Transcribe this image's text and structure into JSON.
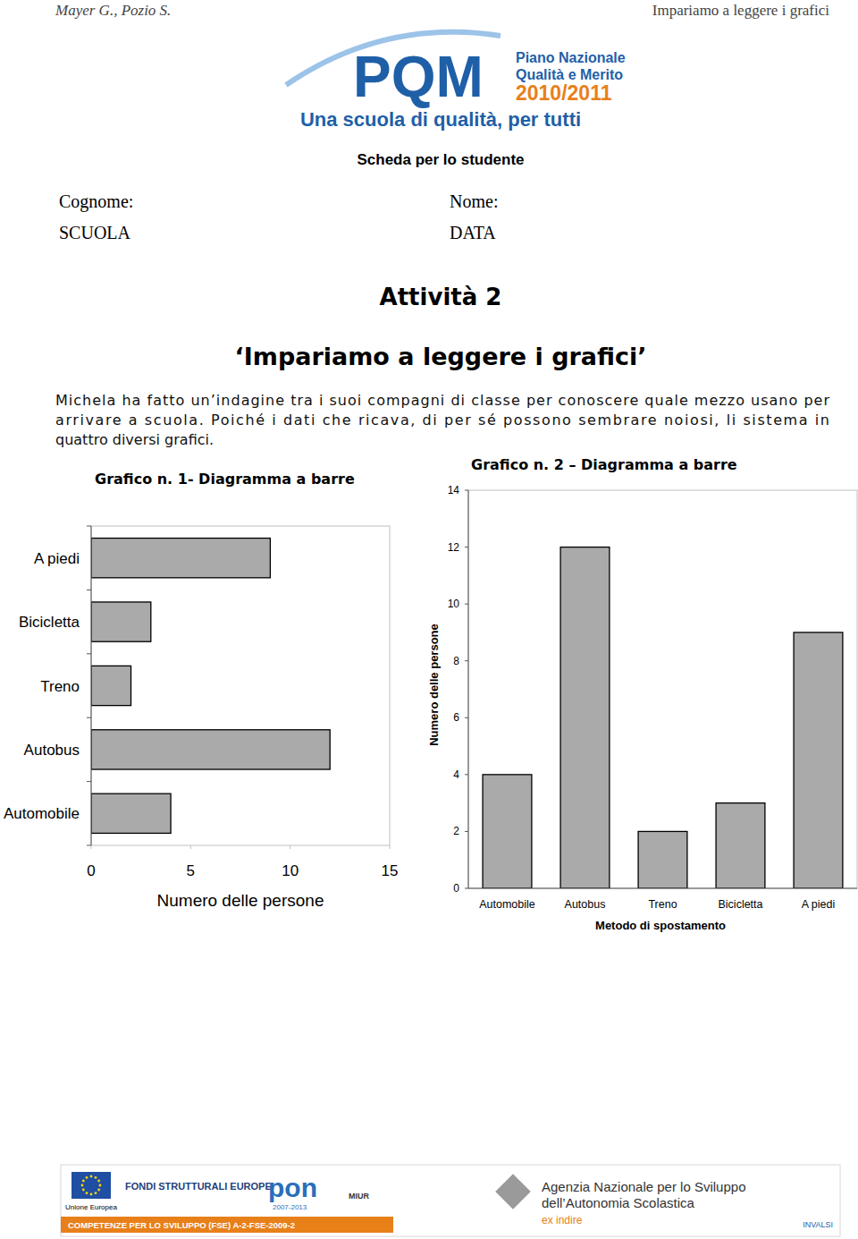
{
  "header": {
    "author": "Mayer G., Pozio S.",
    "running_title": "Impariamo a leggere i grafici"
  },
  "logo": {
    "brand": "PQM",
    "line1": "Piano Nazionale",
    "line2": "Qualità e Merito",
    "years": "2010/2011",
    "motto": "Una scuola di qualità, per tutti"
  },
  "form": {
    "heading": "Scheda per lo studente",
    "surname": "Cognome:",
    "name": "Nome:",
    "school": "SCUOLA",
    "date": "DATA"
  },
  "activity": {
    "number": "Attività 2",
    "title": "‘Impariamo a leggere i grafici’",
    "intro": [
      "Michela ha fatto un’indagine tra i suoi compagni di classe per conoscere quale mezzo usano per",
      "arrivare a scuola. Poiché i dati che ricava, di per sé possono sembrare noiosi, li sistema in",
      "quattro diversi grafici."
    ]
  },
  "chart_data": [
    {
      "type": "bar",
      "orientation": "horizontal",
      "title": "Grafico n. 1- Diagramma a barre",
      "categories": [
        "A piedi",
        "Bicicletta",
        "Treno",
        "Autobus",
        "Automobile"
      ],
      "values": [
        9,
        3,
        2,
        12,
        4
      ],
      "color": "#aaaaaa",
      "xlabel": "Numero delle persone",
      "xlim": [
        0,
        15
      ],
      "xticks": [
        0,
        5,
        10,
        15
      ]
    },
    {
      "type": "bar",
      "title": "Grafico n. 2 – Diagramma a barre",
      "categories": [
        "Automobile",
        "Autobus",
        "Treno",
        "Bicicletta",
        "A piedi"
      ],
      "values": [
        4,
        12,
        2,
        3,
        9
      ],
      "color": "#aaaaaa",
      "xlabel": "Metodo di spostamento",
      "ylabel": "Numero delle persone",
      "ylim": [
        0,
        14
      ],
      "yticks": [
        0,
        2,
        4,
        6,
        8,
        10,
        12,
        14
      ]
    }
  ],
  "footer": {
    "eu": "Unione Europea",
    "funds": "FONDI STRUTTURALI EUROPEI",
    "pon": "pon",
    "pon_years": "2007-2013",
    "fse": "COMPETENZE PER LO SVILUPPO (FSE) A-2-FSE-2009-2",
    "miur": "MIUR",
    "agency1": "Agenzia Nazionale per lo Sviluppo",
    "agency2": "dell’Autonomia Scolastica",
    "indire": "ex indire",
    "invalsi": "INVALSI"
  }
}
